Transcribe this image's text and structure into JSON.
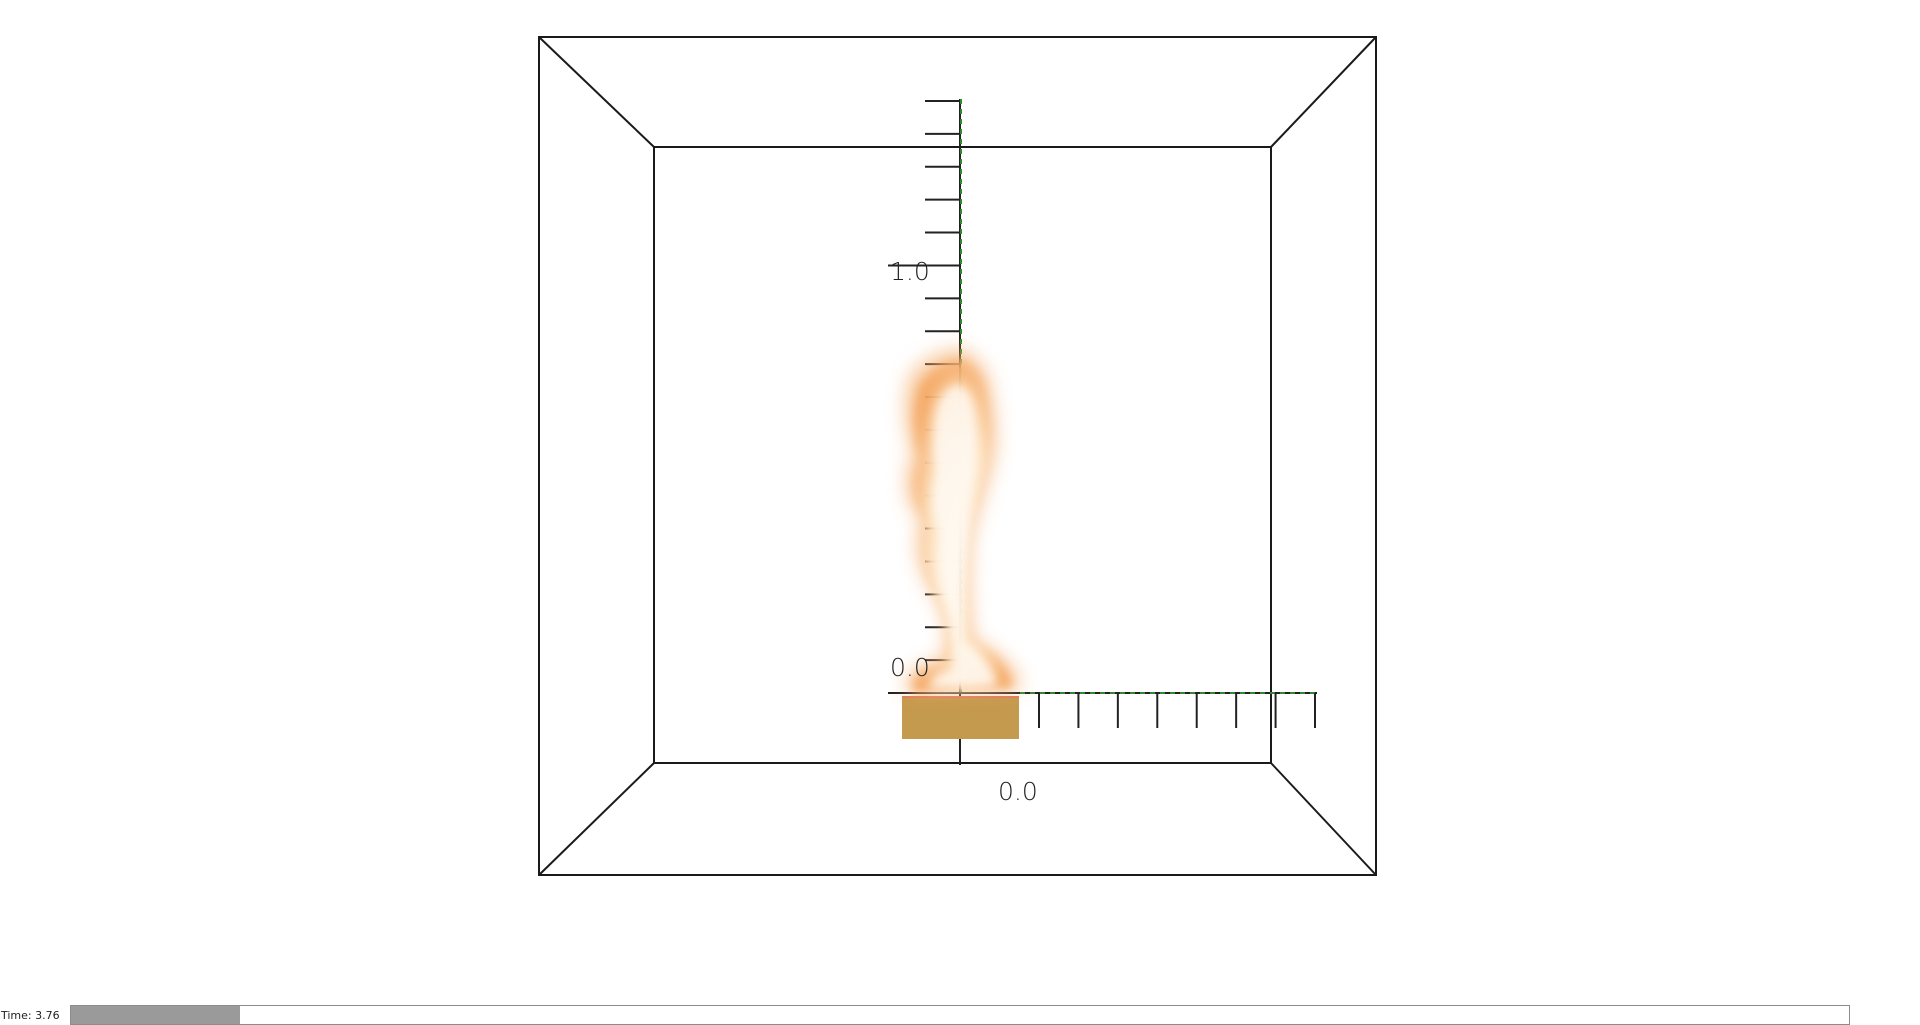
{
  "viewer": {
    "time_label": "Time: 3.76",
    "timeline_progress": 0.095,
    "colors": {
      "frame": "#1a1a1a",
      "axis": "#222222",
      "axis_grid": "#2e8b2e",
      "burner": "#c49a4f",
      "flame_core": "#fff3e0",
      "flame_edge": "#f3a35c"
    }
  },
  "axes": {
    "x_axis": {
      "origin_label": "0.0"
    },
    "y_axis": {
      "origin_label": "0.0",
      "top_label": "1.0"
    }
  },
  "icons": {
    "flame": "fire-volume-render",
    "burner": "burner-block"
  }
}
